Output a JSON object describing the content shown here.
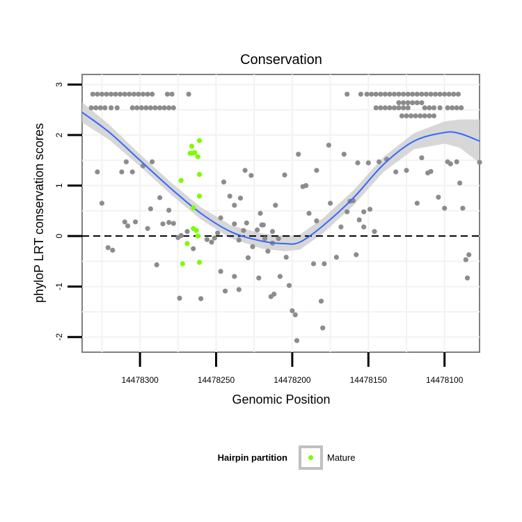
{
  "chart_data": {
    "type": "scatter",
    "title": "Conservation",
    "xlabel": "Genomic Position",
    "ylabel": "phyloP LRT conservation scores",
    "xlim": [
      14478338,
      14478077
    ],
    "x_reversed": true,
    "ylim": [
      -2.3,
      3.2
    ],
    "x_ticks": [
      14478300,
      14478250,
      14478200,
      14478150,
      14478100
    ],
    "x_tick_labels": [
      "14478300",
      "14478250",
      "14478200",
      "14478150",
      "14478100"
    ],
    "y_ticks": [
      -2,
      -1,
      0,
      1,
      2,
      3
    ],
    "y_tick_labels": [
      "-2",
      "-1",
      "0",
      "1",
      "2",
      "3"
    ],
    "reference_line": {
      "y": 0,
      "style": "dashed"
    },
    "grid": true,
    "legend": {
      "title": "Hairpin partition",
      "position": "bottom",
      "entries": [
        {
          "label": "Mature",
          "color": "#7cfc00"
        }
      ]
    },
    "colors": {
      "background": "#ffffff",
      "grid": "#f2f2f2",
      "border": "#7f7f7f",
      "points": "#8c8c8c",
      "mature": "#7cfc00",
      "smooth": "#3366ff",
      "band": "#d0d0d0",
      "legend_key_border": "#c0c0c0"
    },
    "series": [
      {
        "name": "Hairpin",
        "color": "#8c8c8c",
        "points": [
          [
            14478331,
            2.81
          ],
          [
            14478328,
            2.81
          ],
          [
            14478325,
            2.81
          ],
          [
            14478322,
            2.81
          ],
          [
            14478319,
            2.81
          ],
          [
            14478316,
            2.81
          ],
          [
            14478313,
            2.81
          ],
          [
            14478310,
            2.81
          ],
          [
            14478307,
            2.81
          ],
          [
            14478304,
            2.81
          ],
          [
            14478301,
            2.81
          ],
          [
            14478298,
            2.81
          ],
          [
            14478295,
            2.81
          ],
          [
            14478292,
            2.81
          ],
          [
            14478282,
            2.81
          ],
          [
            14478279,
            2.81
          ],
          [
            14478268,
            2.81
          ],
          [
            14478332,
            2.54
          ],
          [
            14478329,
            2.54
          ],
          [
            14478326,
            2.54
          ],
          [
            14478323,
            2.54
          ],
          [
            14478319,
            2.54
          ],
          [
            14478315,
            2.54
          ],
          [
            14478305,
            2.54
          ],
          [
            14478302,
            2.54
          ],
          [
            14478299,
            2.54
          ],
          [
            14478296,
            2.54
          ],
          [
            14478293,
            2.54
          ],
          [
            14478290,
            2.54
          ],
          [
            14478287,
            2.54
          ],
          [
            14478284,
            2.54
          ],
          [
            14478281,
            2.54
          ],
          [
            14478278,
            2.54
          ],
          [
            14478328,
            1.27
          ],
          [
            14478312,
            1.27
          ],
          [
            14478305,
            1.27
          ],
          [
            14478309,
            1.47
          ],
          [
            14478298,
            1.39
          ],
          [
            14478292,
            1.47
          ],
          [
            14478325,
            0.65
          ],
          [
            14478310,
            0.28
          ],
          [
            14478308,
            0.2
          ],
          [
            14478303,
            0.28
          ],
          [
            14478293,
            0.54
          ],
          [
            14478281,
            0.27
          ],
          [
            14478278,
            0.25
          ],
          [
            14478295,
            0.15
          ],
          [
            14478287,
            0.76
          ],
          [
            14478281,
            0.51
          ],
          [
            14478285,
            0.24
          ],
          [
            14478321,
            -0.23
          ],
          [
            14478318,
            -0.28
          ],
          [
            14478289,
            -0.57
          ],
          [
            14478275,
            -0.03
          ],
          [
            14478273,
            0.01
          ],
          [
            14478269,
            0.09
          ],
          [
            14478265,
            -0.25
          ],
          [
            14478274,
            -1.23
          ],
          [
            14478260,
            -1.24
          ],
          [
            14478256,
            -0.07
          ],
          [
            14478253,
            -0.12
          ],
          [
            14478251,
            -0.04
          ],
          [
            14478249,
            0.06
          ],
          [
            14478247,
            0.36
          ],
          [
            14478245,
            1.07
          ],
          [
            14478247,
            -0.7
          ],
          [
            14478244,
            -1.09
          ],
          [
            14478238,
            0.24
          ],
          [
            14478241,
            0.79
          ],
          [
            14478238,
            0.61
          ],
          [
            14478234,
            0.75
          ],
          [
            14478235,
            -0.08
          ],
          [
            14478232,
            0.11
          ],
          [
            14478230,
            0.26
          ],
          [
            14478226,
            -0.21
          ],
          [
            14478223,
            0.12
          ],
          [
            14478220,
            0.22
          ],
          [
            14478216,
            -0.3
          ],
          [
            14478213,
            0.09
          ],
          [
            14478209,
            -0.05
          ],
          [
            14478213,
            -0.14
          ],
          [
            14478219,
            0.22
          ],
          [
            14478238,
            -0.8
          ],
          [
            14478235,
            -1.06
          ],
          [
            14478229,
            -0.43
          ],
          [
            14478222,
            -0.83
          ],
          [
            14478214,
            -1.2
          ],
          [
            14478212,
            -1.15
          ],
          [
            14478208,
            -0.8
          ],
          [
            14478204,
            -0.42
          ],
          [
            14478202,
            -0.98
          ],
          [
            14478200,
            -1.48
          ],
          [
            14478198,
            -1.56
          ],
          [
            14478231,
            1.3
          ],
          [
            14478227,
            1.2
          ],
          [
            14478221,
            0.45
          ],
          [
            14478218,
            -0.05
          ],
          [
            14478211,
            0.61
          ],
          [
            14478205,
            1.21
          ],
          [
            14478196,
            1.62
          ],
          [
            14478193,
            0.98
          ],
          [
            14478191,
            1.0
          ],
          [
            14478189,
            0.45
          ],
          [
            14478186,
            -0.55
          ],
          [
            14478184,
            0.3
          ],
          [
            14478197,
            -2.07
          ],
          [
            14478179,
            -0.55
          ],
          [
            14478184,
            1.3
          ],
          [
            14478176,
            1.8
          ],
          [
            14478175,
            0.65
          ],
          [
            14478181,
            -1.29
          ],
          [
            14478180,
            -1.82
          ],
          [
            14478168,
            0.18
          ],
          [
            14478166,
            1.62
          ],
          [
            14478164,
            0.48
          ],
          [
            14478162,
            0.69
          ],
          [
            14478160,
            0.7
          ],
          [
            14478158,
            -0.37
          ],
          [
            14478171,
            -0.42
          ],
          [
            14478156,
            0.32
          ],
          [
            14478153,
            0.48
          ],
          [
            14478149,
            0.53
          ],
          [
            14478153,
            0.18
          ],
          [
            14478146,
            0.09
          ],
          [
            14478143,
            1.47
          ],
          [
            14478150,
            1.45
          ],
          [
            14478138,
            1.52
          ],
          [
            14478132,
            1.27
          ],
          [
            14478125,
            1.3
          ],
          [
            14478118,
            0.65
          ],
          [
            14478115,
            1.55
          ],
          [
            14478111,
            1.25
          ],
          [
            14478109,
            1.28
          ],
          [
            14478104,
            0.77
          ],
          [
            14478100,
            0.55
          ],
          [
            14478098,
            1.47
          ],
          [
            14478096,
            1.43
          ],
          [
            14478092,
            1.47
          ],
          [
            14478090,
            1.05
          ],
          [
            14478088,
            0.55
          ],
          [
            14478086,
            -0.47
          ],
          [
            14478085,
            -0.83
          ],
          [
            14478084,
            -0.37
          ],
          [
            14478077,
            1.46
          ],
          [
            14478151,
            2.81
          ],
          [
            14478148,
            2.81
          ],
          [
            14478145,
            2.81
          ],
          [
            14478142,
            2.81
          ],
          [
            14478139,
            2.81
          ],
          [
            14478136,
            2.81
          ],
          [
            14478133,
            2.81
          ],
          [
            14478130,
            2.81
          ],
          [
            14478127,
            2.81
          ],
          [
            14478124,
            2.81
          ],
          [
            14478121,
            2.81
          ],
          [
            14478118,
            2.81
          ],
          [
            14478115,
            2.81
          ],
          [
            14478112,
            2.81
          ],
          [
            14478109,
            2.81
          ],
          [
            14478106,
            2.81
          ],
          [
            14478103,
            2.81
          ],
          [
            14478100,
            2.81
          ],
          [
            14478097,
            2.81
          ],
          [
            14478094,
            2.81
          ],
          [
            14478091,
            2.81
          ],
          [
            14478145,
            2.54
          ],
          [
            14478142,
            2.54
          ],
          [
            14478139,
            2.54
          ],
          [
            14478136,
            2.54
          ],
          [
            14478133,
            2.54
          ],
          [
            14478130,
            2.54
          ],
          [
            14478127,
            2.54
          ],
          [
            14478124,
            2.54
          ],
          [
            14478113,
            2.54
          ],
          [
            14478110,
            2.54
          ],
          [
            14478107,
            2.54
          ],
          [
            14478103,
            2.54
          ],
          [
            14478098,
            2.54
          ],
          [
            14478095,
            2.54
          ],
          [
            14478092,
            2.54
          ],
          [
            14478089,
            2.54
          ],
          [
            14478130,
            2.64
          ],
          [
            14478127,
            2.64
          ],
          [
            14478124,
            2.64
          ],
          [
            14478121,
            2.64
          ],
          [
            14478118,
            2.64
          ],
          [
            14478115,
            2.64
          ],
          [
            14478128,
            2.38
          ],
          [
            14478125,
            2.38
          ],
          [
            14478122,
            2.38
          ],
          [
            14478119,
            2.38
          ],
          [
            14478116,
            2.38
          ],
          [
            14478113,
            2.38
          ],
          [
            14478110,
            2.38
          ],
          [
            14478107,
            2.38
          ],
          [
            14478164,
            2.81
          ],
          [
            14478155,
            2.81
          ],
          [
            14478157,
            1.45
          ]
        ]
      },
      {
        "name": "Mature",
        "color": "#7cfc00",
        "points": [
          [
            14478267,
            1.64
          ],
          [
            14478266,
            1.64
          ],
          [
            14478264,
            1.65
          ],
          [
            14478266,
            1.78
          ],
          [
            14478261,
            1.89
          ],
          [
            14478262,
            1.57
          ],
          [
            14478273,
            1.1
          ],
          [
            14478261,
            1.22
          ],
          [
            14478265,
            0.56
          ],
          [
            14478261,
            0.79
          ],
          [
            14478262,
            0.0
          ],
          [
            14478265,
            0.15
          ],
          [
            14478263,
            0.11
          ],
          [
            14478269,
            -0.15
          ],
          [
            14478272,
            -0.55
          ],
          [
            14478261,
            -0.52
          ]
        ]
      }
    ],
    "smooth": {
      "name": "loess",
      "x": [
        14478338,
        14478320,
        14478300,
        14478280,
        14478260,
        14478240,
        14478220,
        14478205,
        14478195,
        14478180,
        14478160,
        14478140,
        14478120,
        14478100,
        14478090,
        14478077
      ],
      "y": [
        2.45,
        2.05,
        1.5,
        0.95,
        0.45,
        0.08,
        -0.1,
        -0.15,
        -0.12,
        0.2,
        0.75,
        1.42,
        1.88,
        2.05,
        2.03,
        1.88
      ],
      "lower": [
        2.25,
        1.9,
        1.38,
        0.83,
        0.33,
        -0.05,
        -0.25,
        -0.3,
        -0.27,
        0.05,
        0.6,
        1.27,
        1.72,
        1.83,
        1.75,
        1.45
      ],
      "upper": [
        2.65,
        2.2,
        1.62,
        1.07,
        0.57,
        0.21,
        0.05,
        0.0,
        0.03,
        0.35,
        0.9,
        1.57,
        2.04,
        2.27,
        2.31,
        2.31
      ]
    }
  }
}
